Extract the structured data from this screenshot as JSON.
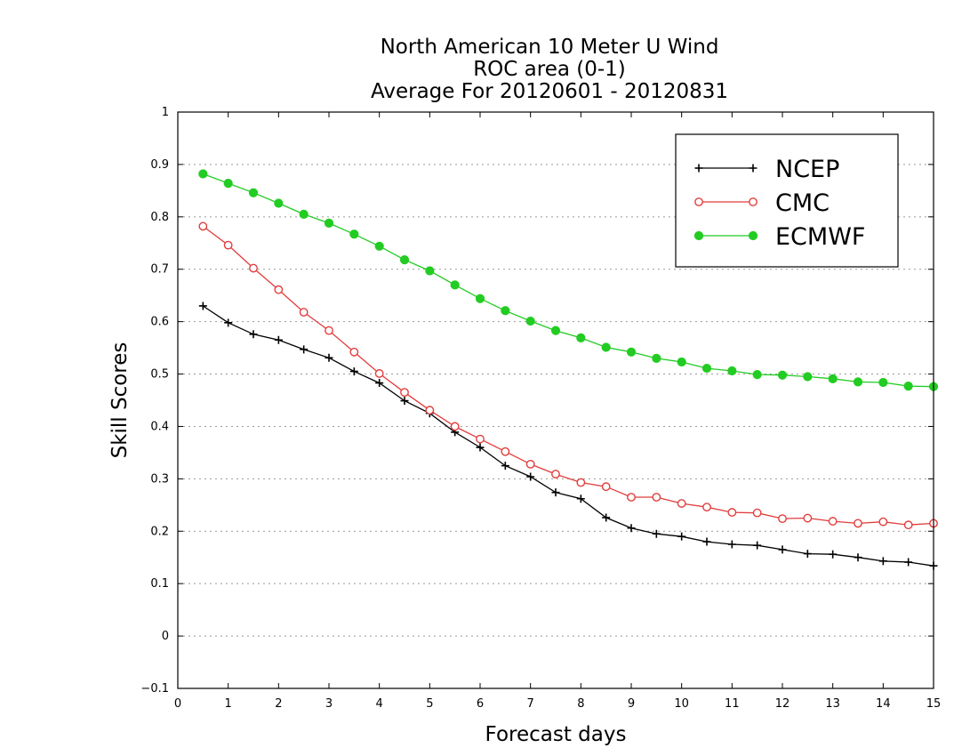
{
  "chart_data": {
    "type": "line",
    "title_lines": [
      "North American 10 Meter U Wind",
      "ROC area (0-1)",
      "Average For 20120601 - 20120831"
    ],
    "xlabel": "Forecast days",
    "ylabel": "Skill Scores",
    "xlim": [
      0,
      15
    ],
    "ylim": [
      -0.1,
      1
    ],
    "x_ticks": [
      "0",
      "1",
      "2",
      "3",
      "4",
      "5",
      "6",
      "7",
      "8",
      "9",
      "10",
      "11",
      "12",
      "13",
      "14",
      "15"
    ],
    "y_ticks": [
      "−0.1",
      "0",
      "0.1",
      "0.2",
      "0.3",
      "0.4",
      "0.5",
      "0.6",
      "0.7",
      "0.8",
      "0.9",
      "1"
    ],
    "grid": "horizontal-dotted",
    "legend_position": "top-right",
    "x": [
      0.5,
      1,
      1.5,
      2,
      2.5,
      3,
      3.5,
      4,
      4.5,
      5,
      5.5,
      6,
      6.5,
      7,
      7.5,
      8,
      8.5,
      9,
      9.5,
      10,
      10.5,
      11,
      11.5,
      12,
      12.5,
      13,
      13.5,
      14,
      14.5,
      15
    ],
    "series": [
      {
        "name": "NCEP",
        "color": "#000000",
        "marker": "plus",
        "values": [
          0.63,
          0.598,
          0.576,
          0.565,
          0.547,
          0.531,
          0.505,
          0.483,
          0.449,
          0.425,
          0.389,
          0.36,
          0.325,
          0.304,
          0.274,
          0.262,
          0.226,
          0.206,
          0.195,
          0.19,
          0.18,
          0.175,
          0.173,
          0.165,
          0.157,
          0.156,
          0.15,
          0.143,
          0.141,
          0.134
        ]
      },
      {
        "name": "CMC",
        "color": "#e23c3c",
        "marker": "open-circle",
        "values": [
          0.782,
          0.746,
          0.702,
          0.661,
          0.618,
          0.583,
          0.542,
          0.501,
          0.465,
          0.431,
          0.4,
          0.376,
          0.352,
          0.328,
          0.309,
          0.293,
          0.285,
          0.265,
          0.265,
          0.253,
          0.246,
          0.236,
          0.235,
          0.224,
          0.225,
          0.219,
          0.215,
          0.218,
          0.212,
          0.215
        ]
      },
      {
        "name": "ECMWF",
        "color": "#22cc22",
        "marker": "filled-circle",
        "values": [
          0.882,
          0.864,
          0.846,
          0.826,
          0.805,
          0.788,
          0.767,
          0.744,
          0.718,
          0.697,
          0.67,
          0.644,
          0.621,
          0.601,
          0.583,
          0.569,
          0.551,
          0.542,
          0.53,
          0.523,
          0.511,
          0.506,
          0.499,
          0.498,
          0.495,
          0.491,
          0.485,
          0.484,
          0.477,
          0.476
        ]
      }
    ]
  }
}
